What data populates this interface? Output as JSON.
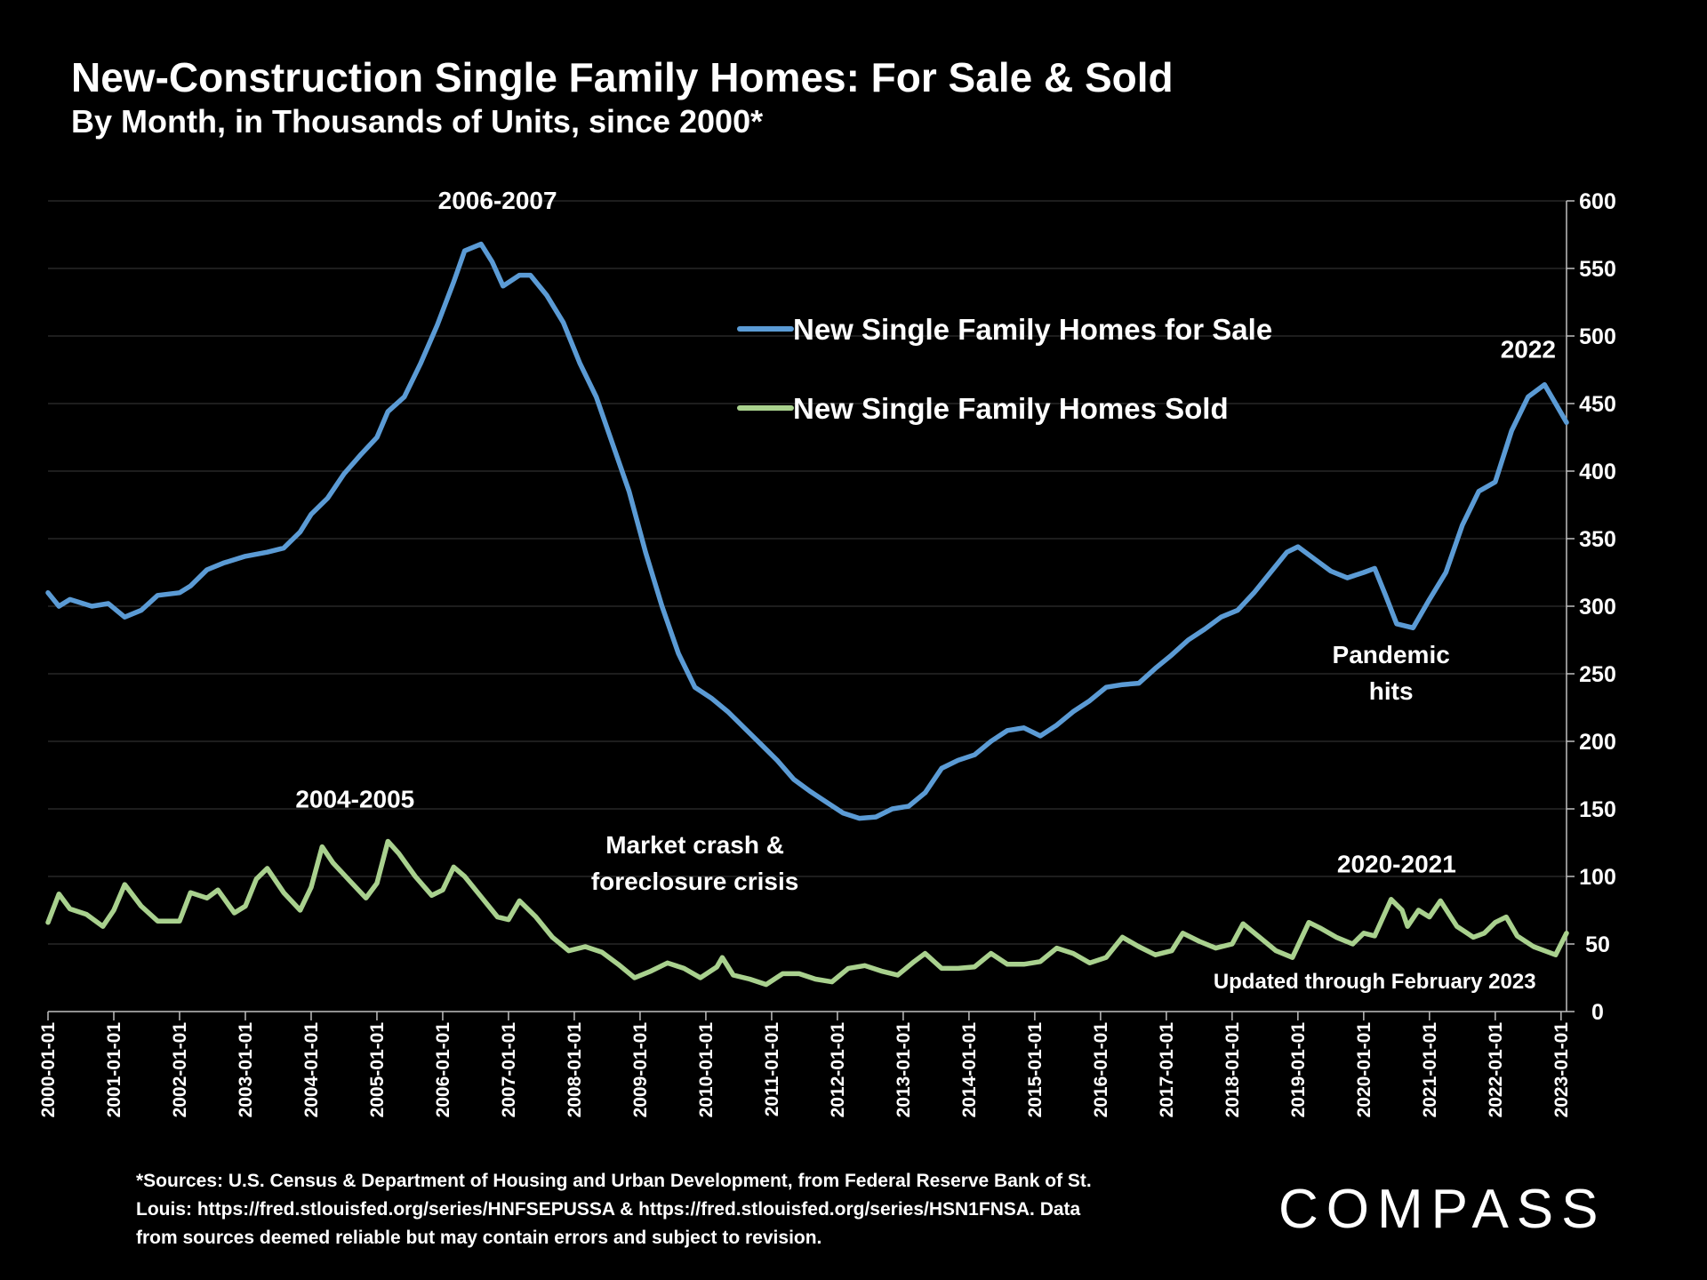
{
  "header": {
    "title": "New-Construction Single Family Homes:  For Sale & Sold",
    "subtitle": "By Month, in Thousands of Units, since 2000*"
  },
  "footer": {
    "source_line1": "*Sources: U.S. Census & Department of Housing and Urban Development, from Federal Reserve Bank of St.",
    "source_line2": "Louis:  https://fred.stlouisfed.org/series/HNFSEPUSSA & https://fred.stlouisfed.org/series/HSN1FNSA. Data",
    "source_line3": "from sources deemed reliable but may contain errors and subject to revision.",
    "logo_text": "COMPASS"
  },
  "chart_data": {
    "type": "line",
    "title": "New-Construction Single Family Homes:  For Sale & Sold",
    "subtitle": "By Month, in Thousands of Units, since 2000*",
    "ylim": [
      0,
      600
    ],
    "y_axis_side": "right",
    "y_ticks": [
      "0",
      "50",
      "100",
      "150",
      "200",
      "250",
      "300",
      "350",
      "400",
      "450",
      "500",
      "550",
      "600"
    ],
    "x_range": [
      "2000-01-01",
      "2023-02-01"
    ],
    "x_ticks": [
      "2000-01-01",
      "2001-01-01",
      "2002-01-01",
      "2003-01-01",
      "2004-01-01",
      "2005-01-01",
      "2006-01-01",
      "2007-01-01",
      "2008-01-01",
      "2009-01-01",
      "2010-01-01",
      "2011-01-01",
      "2012-01-01",
      "2013-01-01",
      "2014-01-01",
      "2015-01-01",
      "2016-01-01",
      "2017-01-01",
      "2018-01-01",
      "2019-01-01",
      "2020-01-01",
      "2021-01-01",
      "2022-01-01",
      "2023-01-01"
    ],
    "grid": "horizontal",
    "legend": "upper-center",
    "series": [
      {
        "name": "New Single Family Homes for Sale",
        "color": "#5b9bd5",
        "points": [
          [
            "2000-01-01",
            310
          ],
          [
            "2000-03-01",
            300
          ],
          [
            "2000-05-01",
            305
          ],
          [
            "2000-09-01",
            300
          ],
          [
            "2000-12-01",
            302
          ],
          [
            "2001-03-01",
            292
          ],
          [
            "2001-06-01",
            297
          ],
          [
            "2001-09-01",
            308
          ],
          [
            "2002-01-01",
            310
          ],
          [
            "2002-03-01",
            315
          ],
          [
            "2002-06-01",
            327
          ],
          [
            "2002-09-01",
            332
          ],
          [
            "2003-01-01",
            337
          ],
          [
            "2003-05-01",
            340
          ],
          [
            "2003-08-01",
            343
          ],
          [
            "2003-11-01",
            355
          ],
          [
            "2004-01-01",
            368
          ],
          [
            "2004-04-01",
            380
          ],
          [
            "2004-07-01",
            398
          ],
          [
            "2004-10-01",
            412
          ],
          [
            "2005-01-01",
            425
          ],
          [
            "2005-03-01",
            444
          ],
          [
            "2005-06-01",
            455
          ],
          [
            "2005-09-01",
            480
          ],
          [
            "2005-12-01",
            508
          ],
          [
            "2006-03-01",
            540
          ],
          [
            "2006-05-01",
            563
          ],
          [
            "2006-08-01",
            568
          ],
          [
            "2006-10-01",
            555
          ],
          [
            "2006-12-01",
            537
          ],
          [
            "2007-03-01",
            545
          ],
          [
            "2007-05-01",
            545
          ],
          [
            "2007-08-01",
            530
          ],
          [
            "2007-11-01",
            510
          ],
          [
            "2008-02-01",
            480
          ],
          [
            "2008-05-01",
            455
          ],
          [
            "2008-08-01",
            420
          ],
          [
            "2008-11-01",
            385
          ],
          [
            "2009-02-01",
            340
          ],
          [
            "2009-05-01",
            300
          ],
          [
            "2009-08-01",
            265
          ],
          [
            "2009-11-01",
            240
          ],
          [
            "2010-02-01",
            232
          ],
          [
            "2010-05-01",
            222
          ],
          [
            "2010-08-01",
            210
          ],
          [
            "2010-11-01",
            198
          ],
          [
            "2011-02-01",
            186
          ],
          [
            "2011-05-01",
            172
          ],
          [
            "2011-08-01",
            163
          ],
          [
            "2011-11-01",
            155
          ],
          [
            "2012-02-01",
            147
          ],
          [
            "2012-05-01",
            143
          ],
          [
            "2012-08-01",
            144
          ],
          [
            "2012-11-01",
            150
          ],
          [
            "2013-02-01",
            152
          ],
          [
            "2013-05-01",
            162
          ],
          [
            "2013-08-01",
            180
          ],
          [
            "2013-11-01",
            186
          ],
          [
            "2014-02-01",
            190
          ],
          [
            "2014-05-01",
            200
          ],
          [
            "2014-08-01",
            208
          ],
          [
            "2014-11-01",
            210
          ],
          [
            "2015-02-01",
            204
          ],
          [
            "2015-05-01",
            212
          ],
          [
            "2015-08-01",
            222
          ],
          [
            "2015-11-01",
            230
          ],
          [
            "2016-02-01",
            240
          ],
          [
            "2016-05-01",
            242
          ],
          [
            "2016-08-01",
            243
          ],
          [
            "2016-11-01",
            254
          ],
          [
            "2017-02-01",
            264
          ],
          [
            "2017-05-01",
            275
          ],
          [
            "2017-08-01",
            283
          ],
          [
            "2017-11-01",
            292
          ],
          [
            "2018-02-01",
            297
          ],
          [
            "2018-05-01",
            310
          ],
          [
            "2018-08-01",
            325
          ],
          [
            "2018-11-01",
            340
          ],
          [
            "2019-01-01",
            344
          ],
          [
            "2019-04-01",
            335
          ],
          [
            "2019-07-01",
            326
          ],
          [
            "2019-10-01",
            321
          ],
          [
            "2020-01-01",
            325
          ],
          [
            "2020-03-01",
            328
          ],
          [
            "2020-05-01",
            308
          ],
          [
            "2020-07-01",
            287
          ],
          [
            "2020-10-01",
            284
          ],
          [
            "2021-01-01",
            305
          ],
          [
            "2021-04-01",
            325
          ],
          [
            "2021-07-01",
            360
          ],
          [
            "2021-10-01",
            385
          ],
          [
            "2022-01-01",
            392
          ],
          [
            "2022-04-01",
            430
          ],
          [
            "2022-07-01",
            455
          ],
          [
            "2022-10-01",
            464
          ],
          [
            "2022-12-01",
            450
          ],
          [
            "2023-02-01",
            436
          ]
        ]
      },
      {
        "name": "New Single Family Homes Sold",
        "color": "#a9d18e",
        "points": [
          [
            "2000-01-01",
            66
          ],
          [
            "2000-03-01",
            87
          ],
          [
            "2000-05-01",
            76
          ],
          [
            "2000-08-01",
            72
          ],
          [
            "2000-11-01",
            63
          ],
          [
            "2001-01-01",
            75
          ],
          [
            "2001-03-01",
            94
          ],
          [
            "2001-06-01",
            78
          ],
          [
            "2001-09-01",
            67
          ],
          [
            "2002-01-01",
            67
          ],
          [
            "2002-03-01",
            88
          ],
          [
            "2002-06-01",
            84
          ],
          [
            "2002-08-01",
            90
          ],
          [
            "2002-11-01",
            73
          ],
          [
            "2003-01-01",
            78
          ],
          [
            "2003-03-01",
            98
          ],
          [
            "2003-05-01",
            106
          ],
          [
            "2003-08-01",
            88
          ],
          [
            "2003-11-01",
            75
          ],
          [
            "2004-01-01",
            92
          ],
          [
            "2004-03-01",
            122
          ],
          [
            "2004-05-01",
            110
          ],
          [
            "2004-08-01",
            97
          ],
          [
            "2004-11-01",
            84
          ],
          [
            "2005-01-01",
            95
          ],
          [
            "2005-03-01",
            126
          ],
          [
            "2005-05-01",
            117
          ],
          [
            "2005-08-01",
            100
          ],
          [
            "2005-11-01",
            86
          ],
          [
            "2006-01-01",
            90
          ],
          [
            "2006-03-01",
            107
          ],
          [
            "2006-05-01",
            100
          ],
          [
            "2006-08-01",
            85
          ],
          [
            "2006-11-01",
            70
          ],
          [
            "2007-01-01",
            68
          ],
          [
            "2007-03-01",
            82
          ],
          [
            "2007-06-01",
            70
          ],
          [
            "2007-09-01",
            55
          ],
          [
            "2007-12-01",
            45
          ],
          [
            "2008-03-01",
            48
          ],
          [
            "2008-06-01",
            44
          ],
          [
            "2008-09-01",
            35
          ],
          [
            "2008-12-01",
            25
          ],
          [
            "2009-03-01",
            30
          ],
          [
            "2009-06-01",
            36
          ],
          [
            "2009-09-01",
            32
          ],
          [
            "2009-12-01",
            25
          ],
          [
            "2010-03-01",
            33
          ],
          [
            "2010-04-01",
            40
          ],
          [
            "2010-06-01",
            27
          ],
          [
            "2010-09-01",
            24
          ],
          [
            "2010-12-01",
            20
          ],
          [
            "2011-03-01",
            28
          ],
          [
            "2011-06-01",
            28
          ],
          [
            "2011-09-01",
            24
          ],
          [
            "2011-12-01",
            22
          ],
          [
            "2012-03-01",
            32
          ],
          [
            "2012-06-01",
            34
          ],
          [
            "2012-09-01",
            30
          ],
          [
            "2012-12-01",
            27
          ],
          [
            "2013-03-01",
            37
          ],
          [
            "2013-05-01",
            43
          ],
          [
            "2013-08-01",
            32
          ],
          [
            "2013-11-01",
            32
          ],
          [
            "2014-02-01",
            33
          ],
          [
            "2014-05-01",
            43
          ],
          [
            "2014-08-01",
            35
          ],
          [
            "2014-11-01",
            35
          ],
          [
            "2015-02-01",
            37
          ],
          [
            "2015-05-01",
            47
          ],
          [
            "2015-08-01",
            43
          ],
          [
            "2015-11-01",
            36
          ],
          [
            "2016-02-01",
            40
          ],
          [
            "2016-05-01",
            55
          ],
          [
            "2016-08-01",
            48
          ],
          [
            "2016-11-01",
            42
          ],
          [
            "2017-02-01",
            45
          ],
          [
            "2017-04-01",
            58
          ],
          [
            "2017-07-01",
            52
          ],
          [
            "2017-10-01",
            47
          ],
          [
            "2018-01-01",
            50
          ],
          [
            "2018-03-01",
            65
          ],
          [
            "2018-06-01",
            55
          ],
          [
            "2018-09-01",
            45
          ],
          [
            "2018-12-01",
            40
          ],
          [
            "2019-03-01",
            66
          ],
          [
            "2019-05-01",
            62
          ],
          [
            "2019-08-01",
            55
          ],
          [
            "2019-11-01",
            50
          ],
          [
            "2020-01-01",
            58
          ],
          [
            "2020-03-01",
            56
          ],
          [
            "2020-06-01",
            83
          ],
          [
            "2020-08-01",
            75
          ],
          [
            "2020-09-01",
            63
          ],
          [
            "2020-11-01",
            75
          ],
          [
            "2021-01-01",
            70
          ],
          [
            "2021-03-01",
            82
          ],
          [
            "2021-06-01",
            63
          ],
          [
            "2021-09-01",
            55
          ],
          [
            "2021-11-01",
            58
          ],
          [
            "2022-01-01",
            66
          ],
          [
            "2022-03-01",
            70
          ],
          [
            "2022-05-01",
            56
          ],
          [
            "2022-08-01",
            48
          ],
          [
            "2022-10-01",
            45
          ],
          [
            "2022-12-01",
            42
          ],
          [
            "2023-02-01",
            58
          ]
        ]
      }
    ],
    "annotations": [
      {
        "text": "2006-2007",
        "x": "2006-11-01",
        "y": 594
      },
      {
        "text": "2004-2005",
        "x": "2004-09-01",
        "y": 151
      },
      {
        "text": "Market crash &",
        "x": "2009-11-01",
        "y": 117
      },
      {
        "text": "foreclosure crisis",
        "x": "2009-11-01",
        "y": 90
      },
      {
        "text": "Pandemic",
        "x": "2020-06-01",
        "y": 258
      },
      {
        "text": "hits",
        "x": "2020-06-01",
        "y": 231
      },
      {
        "text": "2022",
        "x": "2022-07-01",
        "y": 484
      },
      {
        "text": "2020-2021",
        "x": "2020-07-01",
        "y": 103
      },
      {
        "text": "Updated through February 2023",
        "x": "2020-03-01",
        "y": 17
      }
    ]
  }
}
